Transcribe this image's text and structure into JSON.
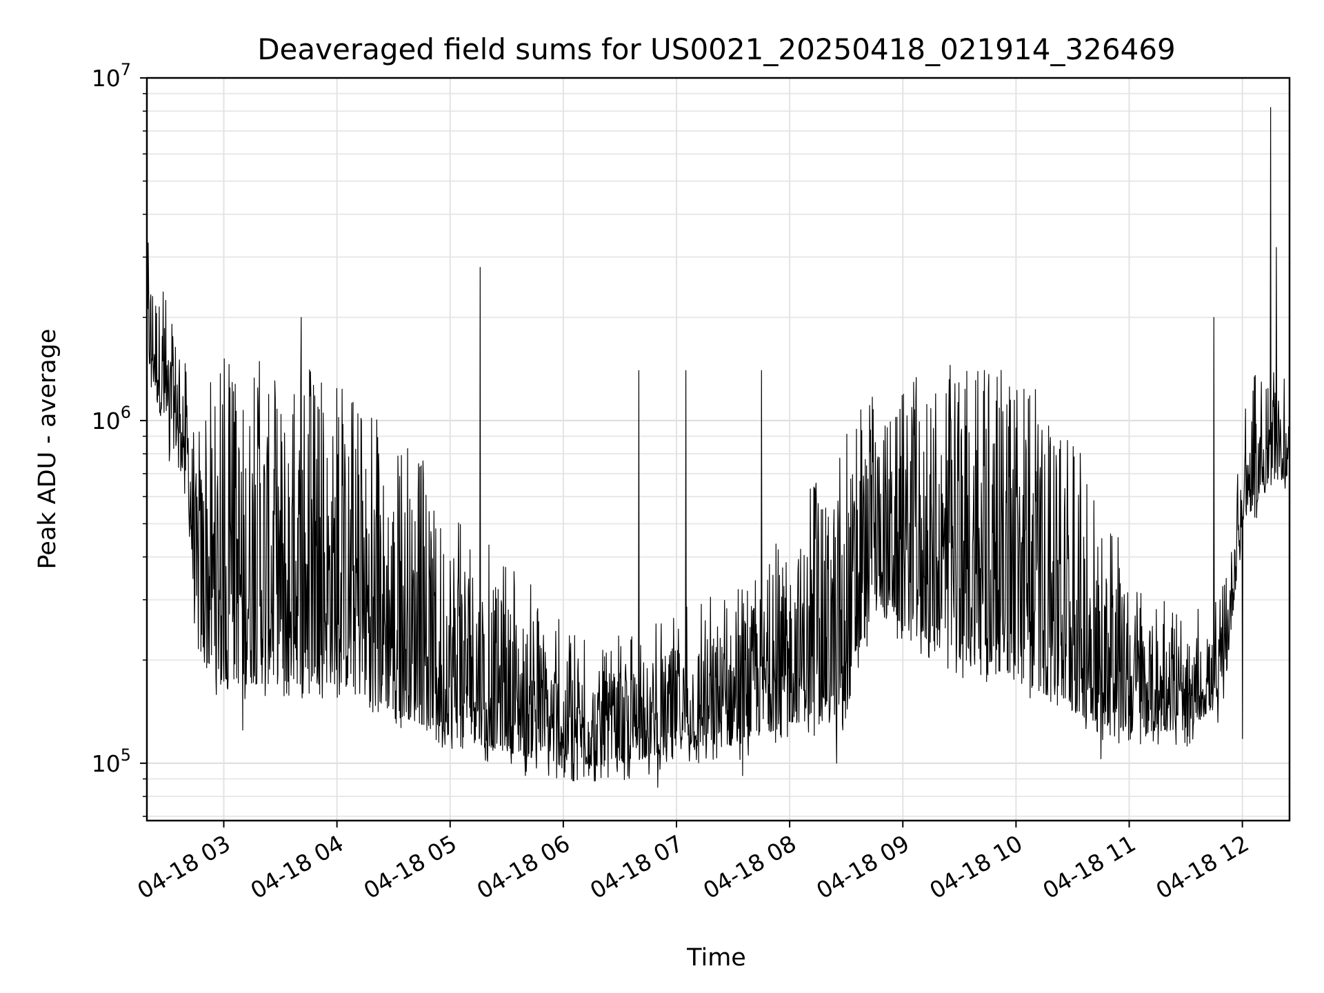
{
  "chart_data": {
    "type": "line",
    "title": "Deaveraged field sums for US0021_20250418_021914_326469",
    "xlabel": "Time",
    "ylabel": "Peak ADU - average",
    "y_scale": "log",
    "ylim": [
      68000,
      10000000
    ],
    "xlim": [
      "2025-04-18T02:19:14",
      "2025-04-18T12:25:00"
    ],
    "y_ticks": [
      {
        "value": 100000,
        "base": "10",
        "exp": "5"
      },
      {
        "value": 1000000,
        "base": "10",
        "exp": "6"
      },
      {
        "value": 10000000,
        "base": "10",
        "exp": "7"
      }
    ],
    "x_ticks": [
      {
        "value": "2025-04-18T03:00:00",
        "label": "04-18 03"
      },
      {
        "value": "2025-04-18T04:00:00",
        "label": "04-18 04"
      },
      {
        "value": "2025-04-18T05:00:00",
        "label": "04-18 05"
      },
      {
        "value": "2025-04-18T06:00:00",
        "label": "04-18 06"
      },
      {
        "value": "2025-04-18T07:00:00",
        "label": "04-18 07"
      },
      {
        "value": "2025-04-18T08:00:00",
        "label": "04-18 08"
      },
      {
        "value": "2025-04-18T09:00:00",
        "label": "04-18 09"
      },
      {
        "value": "2025-04-18T10:00:00",
        "label": "04-18 10"
      },
      {
        "value": "2025-04-18T11:00:00",
        "label": "04-18 11"
      },
      {
        "value": "2025-04-18T12:00:00",
        "label": "04-18 12"
      }
    ],
    "grid": true,
    "legend": "none",
    "series": [
      {
        "color": "#000000",
        "envelope": [
          {
            "x": "2025-04-18T02:19:14",
            "low": 1500000,
            "high": 3000000
          },
          {
            "x": "2025-04-18T02:25:00",
            "low": 1100000,
            "high": 2400000
          },
          {
            "x": "2025-04-18T02:31:00",
            "low": 850000,
            "high": 1700000
          },
          {
            "x": "2025-04-18T02:37:00",
            "low": 800000,
            "high": 1900000
          },
          {
            "x": "2025-04-18T02:41:00",
            "low": 600000,
            "high": 1300000
          },
          {
            "x": "2025-04-18T02:45:00",
            "low": 220000,
            "high": 700000
          },
          {
            "x": "2025-04-18T02:50:00",
            "low": 190000,
            "high": 900000
          },
          {
            "x": "2025-04-18T03:00:00",
            "low": 170000,
            "high": 1200000
          },
          {
            "x": "2025-04-18T03:30:00",
            "low": 170000,
            "high": 1200000
          },
          {
            "x": "2025-04-18T04:00:00",
            "low": 170000,
            "high": 1000000
          },
          {
            "x": "2025-04-18T04:30:00",
            "low": 140000,
            "high": 700000
          },
          {
            "x": "2025-04-18T05:00:00",
            "low": 120000,
            "high": 500000
          },
          {
            "x": "2025-04-18T05:30:00",
            "low": 108000,
            "high": 300000
          },
          {
            "x": "2025-04-18T06:00:00",
            "low": 98000,
            "high": 200000
          },
          {
            "x": "2025-04-18T06:30:00",
            "low": 98000,
            "high": 180000
          },
          {
            "x": "2025-04-18T07:00:00",
            "low": 110000,
            "high": 220000
          },
          {
            "x": "2025-04-18T07:30:00",
            "low": 112000,
            "high": 250000
          },
          {
            "x": "2025-04-18T08:00:00",
            "low": 130000,
            "high": 400000
          },
          {
            "x": "2025-04-18T08:30:00",
            "low": 140000,
            "high": 700000
          },
          {
            "x": "2025-04-18T08:45:00",
            "low": 300000,
            "high": 1000000
          },
          {
            "x": "2025-04-18T09:00:00",
            "low": 250000,
            "high": 1100000
          },
          {
            "x": "2025-04-18T09:30:00",
            "low": 200000,
            "high": 1100000
          },
          {
            "x": "2025-04-18T10:00:00",
            "low": 180000,
            "high": 1100000
          },
          {
            "x": "2025-04-18T10:30:00",
            "low": 140000,
            "high": 700000
          },
          {
            "x": "2025-04-18T11:00:00",
            "low": 122000,
            "high": 300000
          },
          {
            "x": "2025-04-18T11:30:00",
            "low": 125000,
            "high": 200000
          },
          {
            "x": "2025-04-18T11:50:00",
            "low": 150000,
            "high": 250000
          },
          {
            "x": "2025-04-18T12:00:00",
            "low": 500000,
            "high": 900000
          },
          {
            "x": "2025-04-18T12:10:00",
            "low": 600000,
            "high": 1100000
          },
          {
            "x": "2025-04-18T12:25:00",
            "low": 700000,
            "high": 1000000
          }
        ],
        "spikes": [
          {
            "x": "2025-04-18T02:20:00",
            "y": 3300000
          },
          {
            "x": "2025-04-18T03:41:00",
            "y": 2000000
          },
          {
            "x": "2025-04-18T05:16:00",
            "y": 2800000
          },
          {
            "x": "2025-04-18T06:40:00",
            "y": 1400000
          },
          {
            "x": "2025-04-18T07:05:00",
            "y": 1400000
          },
          {
            "x": "2025-04-18T07:45:00",
            "y": 1400000
          },
          {
            "x": "2025-04-18T09:25:00",
            "y": 1450000
          },
          {
            "x": "2025-04-18T11:45:00",
            "y": 2000000
          },
          {
            "x": "2025-04-18T12:15:00",
            "y": 8200000
          },
          {
            "x": "2025-04-18T12:18:00",
            "y": 3200000
          }
        ],
        "dips": [
          {
            "x": "2025-04-18T02:36:00",
            "y": 730000
          },
          {
            "x": "2025-04-18T03:10:00",
            "y": 125000
          },
          {
            "x": "2025-04-18T05:40:00",
            "y": 92000
          },
          {
            "x": "2025-04-18T06:50:00",
            "y": 85000
          },
          {
            "x": "2025-04-18T07:35:00",
            "y": 92000
          },
          {
            "x": "2025-04-18T08:25:00",
            "y": 100000
          },
          {
            "x": "2025-04-18T10:45:00",
            "y": 103000
          },
          {
            "x": "2025-04-18T12:00:00",
            "y": 118000
          }
        ]
      }
    ]
  }
}
